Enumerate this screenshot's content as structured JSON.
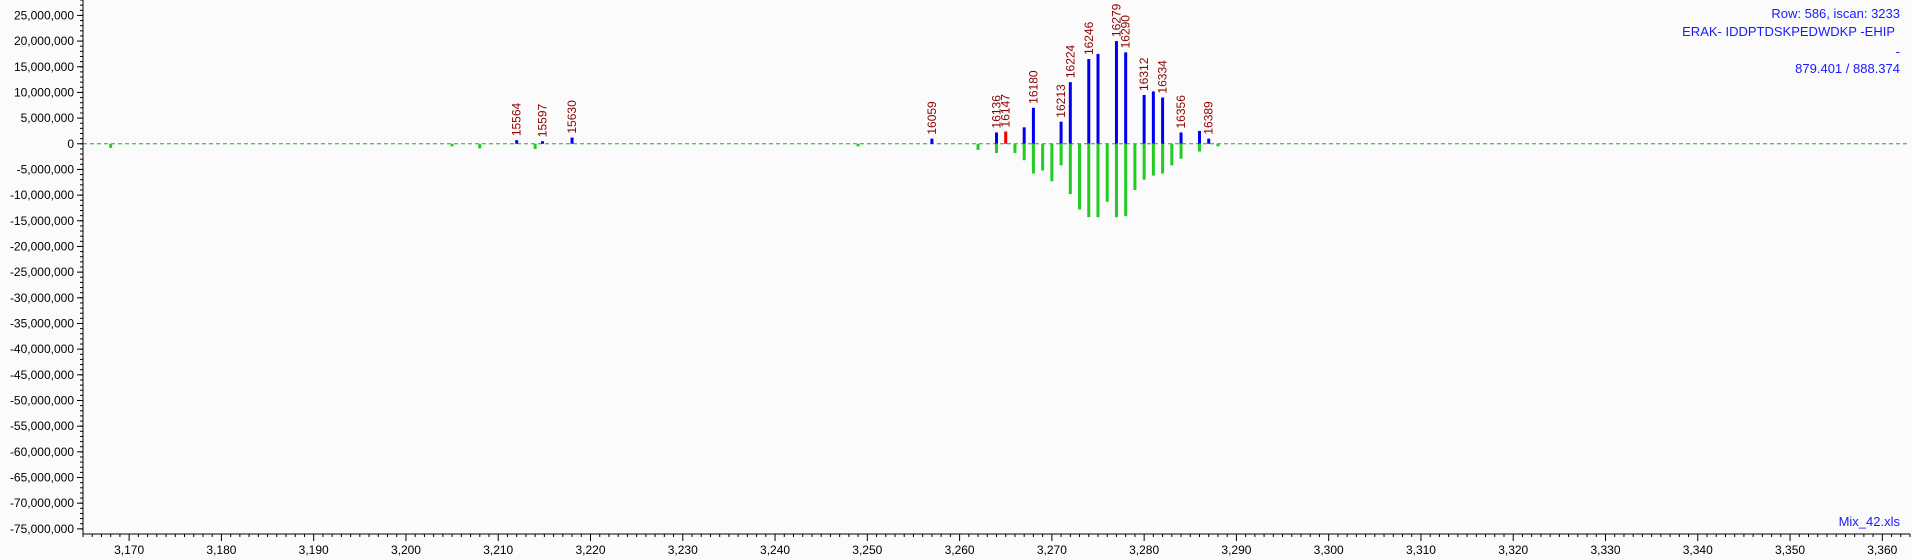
{
  "chart_data": {
    "type": "bar",
    "title": "",
    "xlabel": "",
    "ylabel": "",
    "xlim": [
      3165,
      3363
    ],
    "ylim": [
      -76000000,
      28000000
    ],
    "x_ticks": [
      3170,
      3180,
      3190,
      3200,
      3210,
      3220,
      3230,
      3240,
      3250,
      3260,
      3270,
      3280,
      3290,
      3300,
      3310,
      3320,
      3330,
      3340,
      3350,
      3360
    ],
    "x_tick_labels": [
      "3,170",
      "3,180",
      "3,190",
      "3,200",
      "3,210",
      "3,220",
      "3,230",
      "3,240",
      "3,250",
      "3,260",
      "3,270",
      "3,280",
      "3,290",
      "3,300",
      "3,310",
      "3,320",
      "3,330",
      "3,340",
      "3,350",
      "3,360"
    ],
    "y_ticks": [
      25000000,
      20000000,
      15000000,
      10000000,
      5000000,
      0,
      -5000000,
      -10000000,
      -15000000,
      -20000000,
      -25000000,
      -30000000,
      -35000000,
      -40000000,
      -45000000,
      -50000000,
      -55000000,
      -60000000,
      -65000000,
      -70000000,
      -75000000
    ],
    "y_tick_labels": [
      "25,000,000",
      "20,000,000",
      "15,000,000",
      "10,000,000",
      "5,000,000",
      "0",
      "-5,000,000",
      "-10,000,000",
      "-15,000,000",
      "-20,000,000",
      "-25,000,000",
      "-30,000,000",
      "-35,000,000",
      "-40,000,000",
      "-45,000,000",
      "-50,000,000",
      "-55,000,000",
      "-60,000,000",
      "-65,000,000",
      "-70,000,000",
      "-75,000,000"
    ],
    "grid": false,
    "baseline": 0,
    "series": [
      {
        "color": "#0000ee",
        "points": [
          {
            "x": 3212,
            "y": 700000,
            "label": "15564"
          },
          {
            "x": 3214.8,
            "y": 500000,
            "label": "15597"
          },
          {
            "x": 3218,
            "y": 1200000,
            "label": "15630"
          },
          {
            "x": 3257,
            "y": 1000000,
            "label": "16059"
          },
          {
            "x": 3264,
            "y": 2200000,
            "label": "16136"
          },
          {
            "x": 3267,
            "y": 3200000
          },
          {
            "x": 3268,
            "y": 7000000,
            "label": "16180"
          },
          {
            "x": 3271,
            "y": 4300000,
            "label": "16213"
          },
          {
            "x": 3272,
            "y": 12000000,
            "label": "16224"
          },
          {
            "x": 3274,
            "y": 16500000,
            "label": "16246"
          },
          {
            "x": 3275,
            "y": 17500000
          },
          {
            "x": 3277,
            "y": 20000000,
            "label": "16279"
          },
          {
            "x": 3278,
            "y": 17800000,
            "label": "16290"
          },
          {
            "x": 3280,
            "y": 9500000,
            "label": "16312"
          },
          {
            "x": 3281,
            "y": 10200000
          },
          {
            "x": 3282,
            "y": 9000000,
            "label": "16334"
          },
          {
            "x": 3284,
            "y": 2200000,
            "label": "16356"
          },
          {
            "x": 3286,
            "y": 2500000
          },
          {
            "x": 3287,
            "y": 1000000,
            "label": "16389"
          }
        ]
      },
      {
        "color": "#ee0000",
        "points": [
          {
            "x": 3265,
            "y": 2400000,
            "label": "16147"
          }
        ]
      },
      {
        "color": "#22cc22",
        "points": [
          {
            "x": 3168,
            "y": -800000
          },
          {
            "x": 3205,
            "y": -500000
          },
          {
            "x": 3208,
            "y": -900000
          },
          {
            "x": 3214,
            "y": -1000000
          },
          {
            "x": 3249,
            "y": -500000
          },
          {
            "x": 3262,
            "y": -1200000
          },
          {
            "x": 3264,
            "y": -1800000
          },
          {
            "x": 3266,
            "y": -1800000
          },
          {
            "x": 3267,
            "y": -3200000
          },
          {
            "x": 3268,
            "y": -5800000
          },
          {
            "x": 3269,
            "y": -5200000
          },
          {
            "x": 3270,
            "y": -7300000
          },
          {
            "x": 3271,
            "y": -4200000
          },
          {
            "x": 3272,
            "y": -9800000
          },
          {
            "x": 3273,
            "y": -12800000
          },
          {
            "x": 3274,
            "y": -14300000
          },
          {
            "x": 3275,
            "y": -14300000
          },
          {
            "x": 3276,
            "y": -11300000
          },
          {
            "x": 3277,
            "y": -14300000
          },
          {
            "x": 3278,
            "y": -14100000
          },
          {
            "x": 3279,
            "y": -9000000
          },
          {
            "x": 3280,
            "y": -7000000
          },
          {
            "x": 3281,
            "y": -6200000
          },
          {
            "x": 3282,
            "y": -5800000
          },
          {
            "x": 3283,
            "y": -4200000
          },
          {
            "x": 3284,
            "y": -2900000
          },
          {
            "x": 3286,
            "y": -1500000
          },
          {
            "x": 3288,
            "y": -500000
          }
        ]
      }
    ],
    "annotations": {
      "info_line1": "Row: 586, iscan: 3233",
      "info_line2": "ERAK- IDDPTDSKPEDWDKP -EHIP",
      "info_dash": "-",
      "info_line3": "879.401 / 888.374",
      "file_name": "Mix_42.xls"
    },
    "colors": {
      "axis": "#000000",
      "baseline": "#22aa22",
      "info_text": "#1a1aff",
      "peak_label": "#8b0000"
    }
  }
}
